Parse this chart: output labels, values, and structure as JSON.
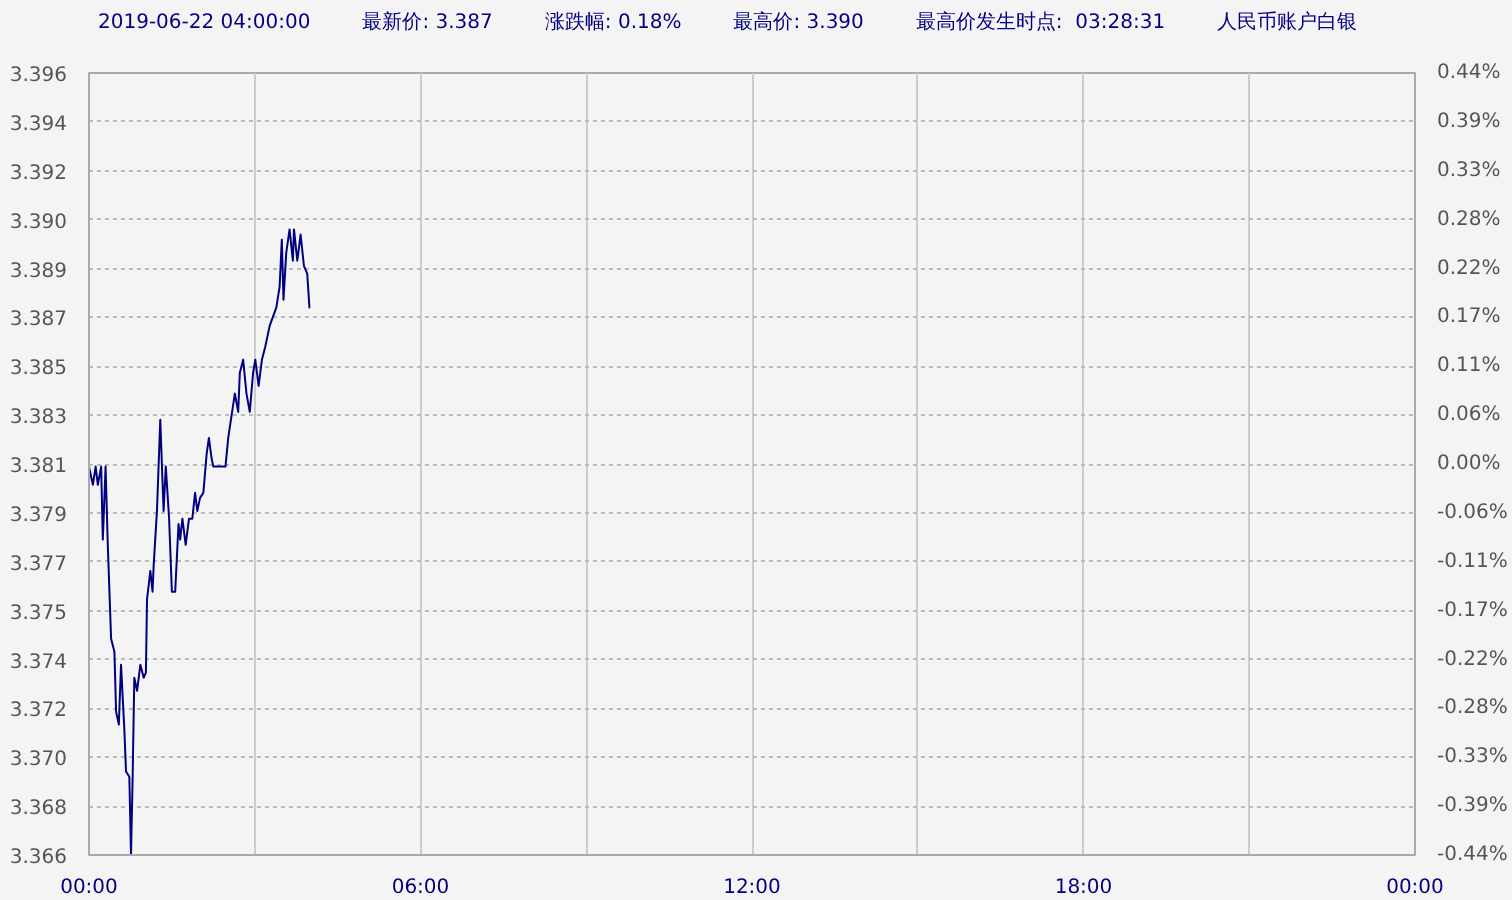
{
  "chart_data": {
    "type": "line",
    "title": "2019-06-22 04:00:00",
    "annotations": [
      "最新价: 3.387",
      "涨跌幅: 0.18%",
      "最高价: 3.390",
      "最高价发生时点:  03:28:31",
      "人民币账户白银"
    ],
    "x": [
      0,
      0.07,
      0.12,
      0.16,
      0.22,
      0.25,
      0.3,
      0.34,
      0.4,
      0.46,
      0.49,
      0.54,
      0.58,
      0.64,
      0.67,
      0.73,
      0.76,
      0.79,
      0.82,
      0.87,
      0.93,
      0.99,
      1.03,
      1.05,
      1.11,
      1.15,
      1.17,
      1.23,
      1.29,
      1.35,
      1.39,
      1.45,
      1.5,
      1.56,
      1.62,
      1.65,
      1.69,
      1.75,
      1.81,
      1.87,
      1.92,
      1.96,
      2.01,
      2.07,
      2.13,
      2.17,
      2.22,
      2.25,
      2.47,
      2.52,
      2.59,
      2.64,
      2.7,
      2.73,
      2.79,
      2.85,
      2.91,
      2.97,
      3.01,
      3.07,
      3.13,
      3.19,
      3.27,
      3.39,
      3.45,
      3.49,
      3.52,
      3.57,
      3.63,
      3.69,
      3.71,
      3.77,
      3.83,
      3.89,
      3.95,
      3.99,
      4.0
    ],
    "series": [
      {
        "color": "#000080",
        "values": [
          3.3809,
          3.3802,
          3.3809,
          3.3802,
          3.3809,
          3.3781,
          3.3809,
          3.3779,
          3.3743,
          3.3738,
          3.3715,
          3.371,
          3.3733,
          3.3708,
          3.3692,
          3.369,
          3.366,
          3.369,
          3.3728,
          3.3723,
          3.3733,
          3.3728,
          3.373,
          3.3758,
          3.3769,
          3.3761,
          3.3771,
          3.3792,
          3.3827,
          3.3792,
          3.3809,
          3.3789,
          3.3761,
          3.3761,
          3.3787,
          3.3781,
          3.3789,
          3.3779,
          3.3789,
          3.3789,
          3.3799,
          3.3792,
          3.3797,
          3.3799,
          3.3814,
          3.382,
          3.3812,
          3.3809,
          3.3809,
          3.382,
          3.383,
          3.3837,
          3.383,
          3.3845,
          3.385,
          3.3837,
          3.383,
          3.3845,
          3.385,
          3.384,
          3.385,
          3.3855,
          3.3863,
          3.387,
          3.3878,
          3.3896,
          3.3873,
          3.3891,
          3.39,
          3.3888,
          3.39,
          3.3888,
          3.3898,
          3.3886,
          3.3883,
          3.387,
          3.387
        ]
      }
    ],
    "xlim": [
      0,
      24
    ],
    "xticks": [
      {
        "value": 0,
        "label": "00:00"
      },
      {
        "value": 3,
        "label": null
      },
      {
        "value": 6,
        "label": "06:00"
      },
      {
        "value": 9,
        "label": null
      },
      {
        "value": 12,
        "label": "12:00"
      },
      {
        "value": 15,
        "label": null
      },
      {
        "value": 18,
        "label": "18:00"
      },
      {
        "value": 21,
        "label": null
      },
      {
        "value": 24,
        "label": "00:00"
      }
    ],
    "ylim": [
      3.366,
      3.396
    ],
    "yticks": [
      {
        "value": 3.366,
        "label": "3.366"
      },
      {
        "value": 3.367875,
        "label": "3.368"
      },
      {
        "value": 3.36975,
        "label": "3.370"
      },
      {
        "value": 3.371625,
        "label": "3.372"
      },
      {
        "value": 3.3735,
        "label": "3.374"
      },
      {
        "value": 3.375375,
        "label": "3.375"
      },
      {
        "value": 3.37725,
        "label": "3.377"
      },
      {
        "value": 3.379125,
        "label": "3.379"
      },
      {
        "value": 3.381,
        "label": "3.381"
      },
      {
        "value": 3.382875,
        "label": "3.383"
      },
      {
        "value": 3.38475,
        "label": "3.385"
      },
      {
        "value": 3.386625,
        "label": "3.387"
      },
      {
        "value": 3.3885,
        "label": "3.389"
      },
      {
        "value": 3.390375,
        "label": "3.390"
      },
      {
        "value": 3.39225,
        "label": "3.392"
      },
      {
        "value": 3.394125,
        "label": "3.394"
      },
      {
        "value": 3.396,
        "label": "3.396"
      }
    ],
    "y2lim": [
      -0.44,
      0.44
    ],
    "y2ticks": [
      {
        "value": -0.44,
        "label": "-0.44%"
      },
      {
        "value": -0.385,
        "label": "-0.39%"
      },
      {
        "value": -0.33,
        "label": "-0.33%"
      },
      {
        "value": -0.275,
        "label": "-0.28%"
      },
      {
        "value": -0.22,
        "label": "-0.22%"
      },
      {
        "value": -0.165,
        "label": "-0.17%"
      },
      {
        "value": -0.11,
        "label": "-0.11%"
      },
      {
        "value": -0.055,
        "label": "-0.06%"
      },
      {
        "value": 0,
        "label": "0.00%"
      },
      {
        "value": 0.055,
        "label": "0.06%"
      },
      {
        "value": 0.11,
        "label": "0.11%"
      },
      {
        "value": 0.165,
        "label": "0.17%"
      },
      {
        "value": 0.22,
        "label": "0.22%"
      },
      {
        "value": 0.275,
        "label": "0.28%"
      },
      {
        "value": 0.33,
        "label": "0.33%"
      },
      {
        "value": 0.385,
        "label": "0.39%"
      },
      {
        "value": 0.44,
        "label": "0.44%"
      }
    ],
    "grid": true,
    "marker": "none",
    "line_style": "solid"
  }
}
